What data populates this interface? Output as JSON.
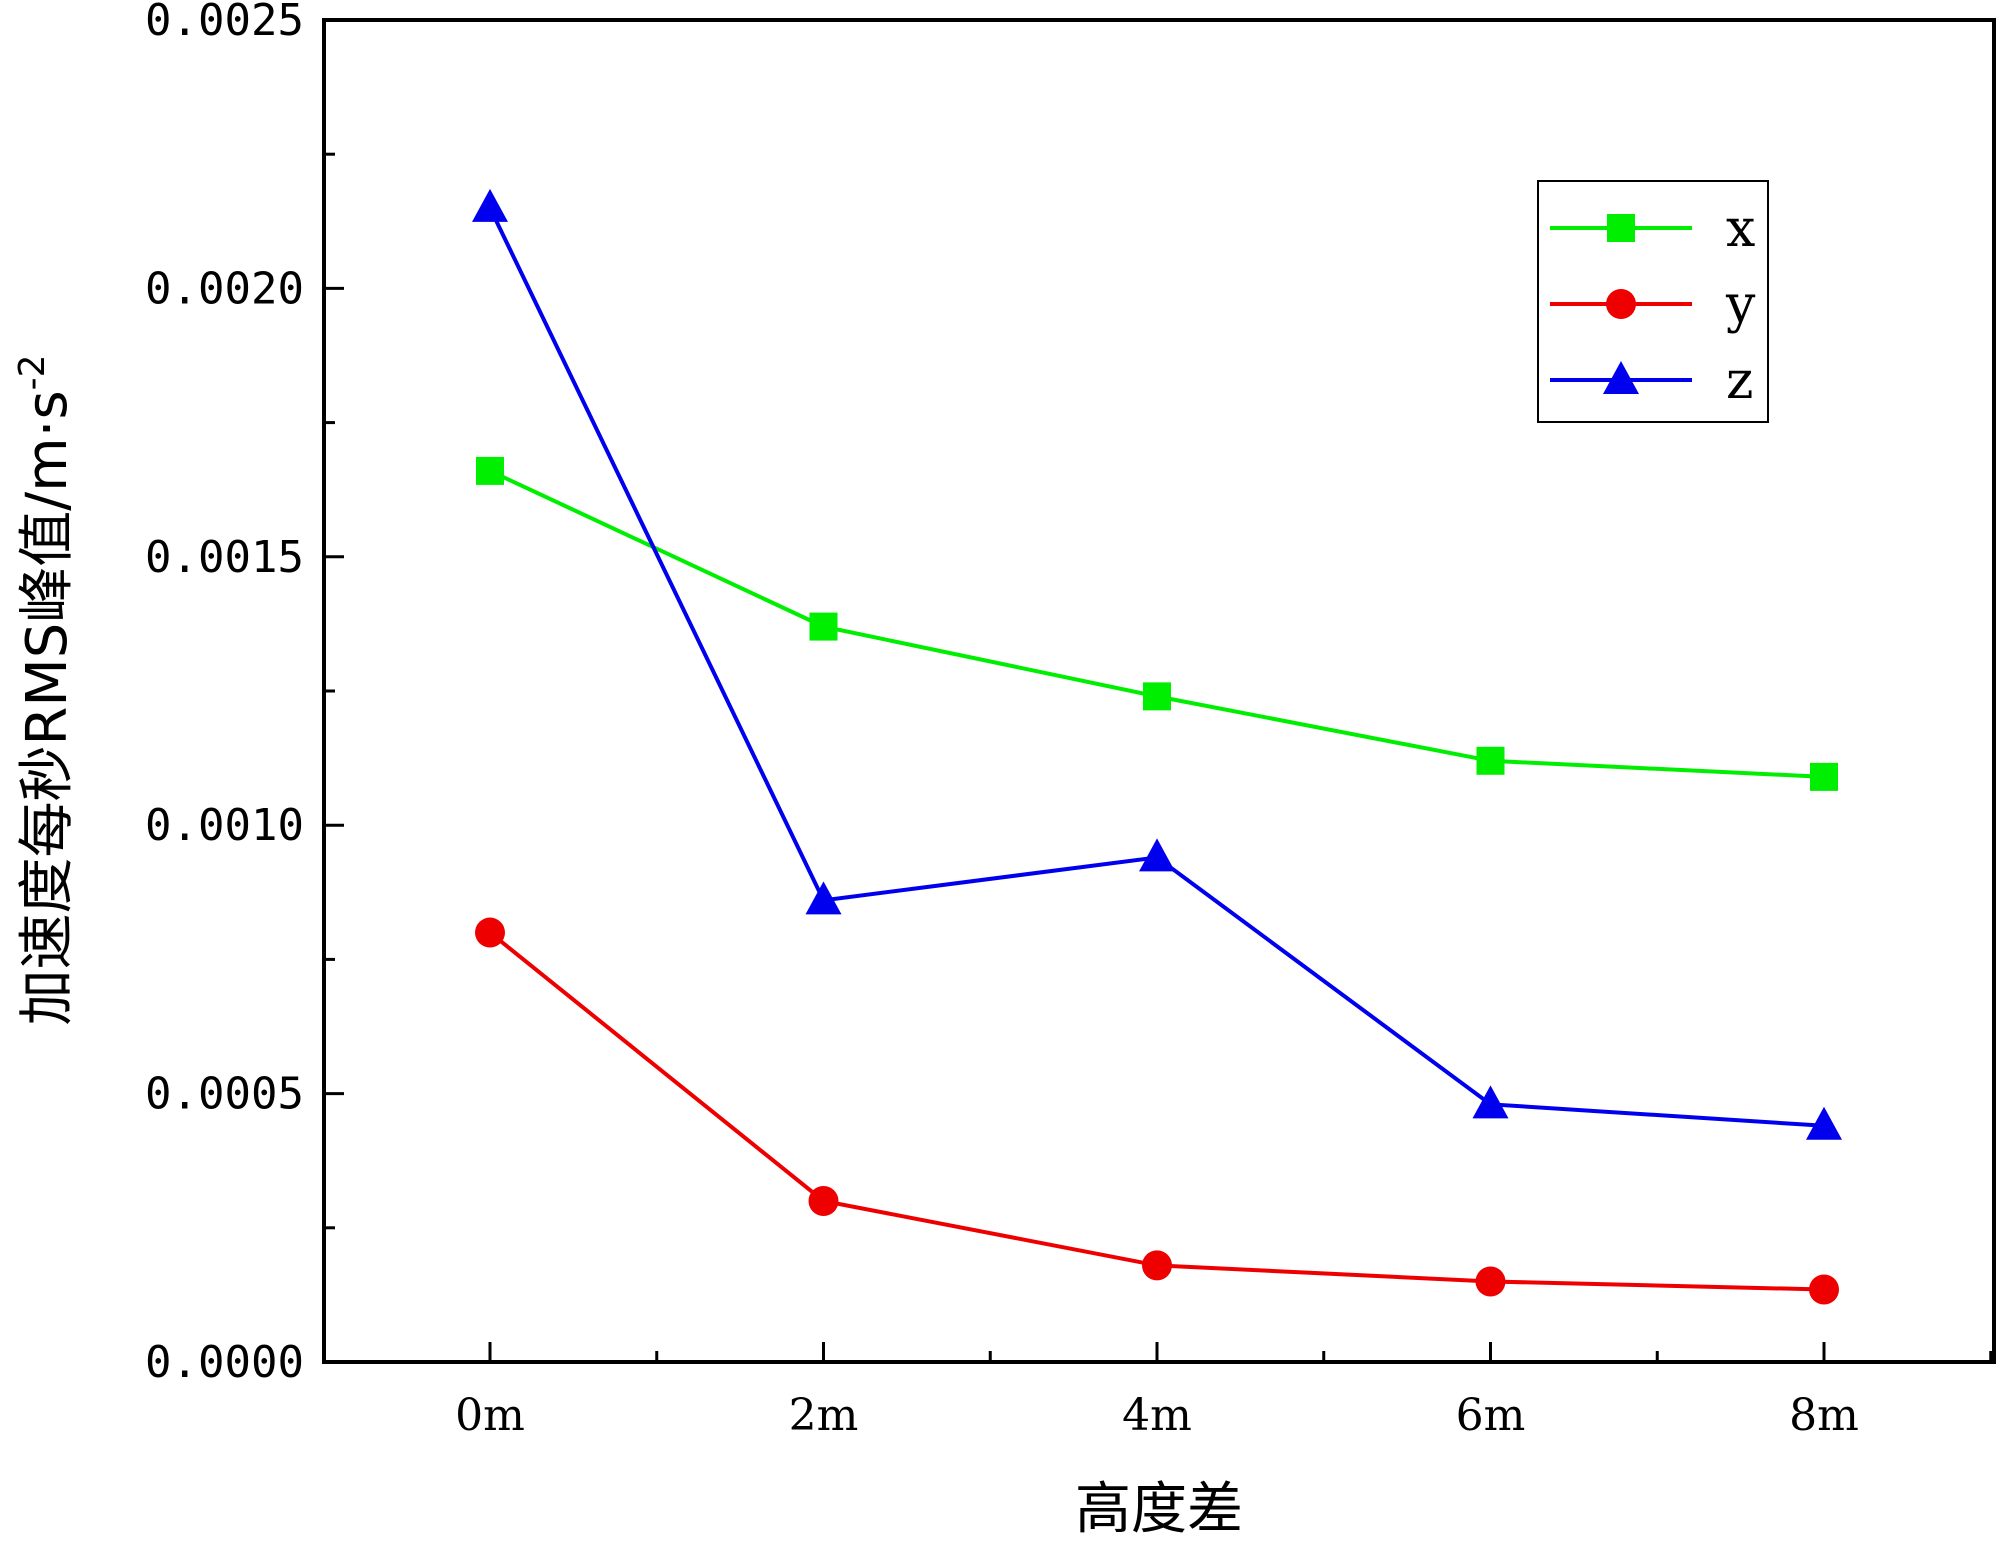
{
  "chart_data": {
    "type": "line",
    "title": "",
    "xlabel": "高度差",
    "ylabel": "加速度每秒RMS峰值/m·s",
    "ylabel_superscript": "-2",
    "categories": [
      "0m",
      "2m",
      "4m",
      "6m",
      "8m"
    ],
    "ylim": [
      0,
      0.0025
    ],
    "yticks": [
      "0.0000",
      "0.0005",
      "0.0010",
      "0.0015",
      "0.0020",
      "0.0025"
    ],
    "ytick_values": [
      0,
      0.0005,
      0.001,
      0.0015,
      0.002,
      0.0025
    ],
    "legend_position": "top-right",
    "grid": false,
    "series": [
      {
        "name": "x",
        "marker": "square",
        "color": "#00ee00",
        "values": [
          0.00166,
          0.00137,
          0.00124,
          0.00112,
          0.00109
        ]
      },
      {
        "name": "y",
        "marker": "circle",
        "color": "#ee0000",
        "values": [
          0.0008,
          0.0003,
          0.00018,
          0.00015,
          0.000135
        ]
      },
      {
        "name": "z",
        "marker": "triangle",
        "color": "#0000ee",
        "values": [
          0.00215,
          0.00086,
          0.00094,
          0.00048,
          0.00044
        ]
      }
    ]
  }
}
